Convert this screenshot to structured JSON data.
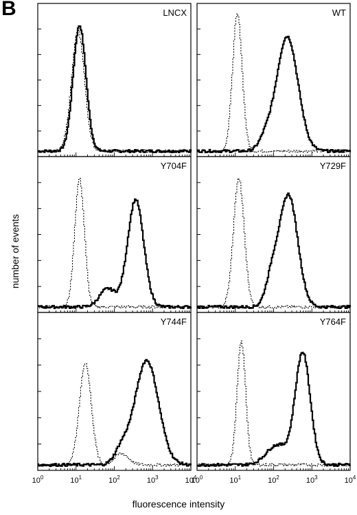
{
  "figure": {
    "panel_letter": "B",
    "y_axis_label": "number of events",
    "x_axis_label": "fluorescence intensity"
  },
  "chart_data": [
    {
      "type": "line",
      "panel": "LNCX",
      "x_scale": "log",
      "xlim": [
        1,
        10000
      ],
      "series": [
        {
          "style": "solid",
          "peaks": [
            {
              "x": 12,
              "height": 0.92,
              "width": 0.12
            }
          ],
          "noise": 0.02
        },
        {
          "style": "dotted",
          "peaks": [
            {
              "x": 11,
              "height": 0.88,
              "width": 0.12
            }
          ],
          "noise": 0.02
        }
      ]
    },
    {
      "type": "line",
      "panel": "WT",
      "x_scale": "log",
      "xlim": [
        1,
        10000
      ],
      "series": [
        {
          "style": "dotted",
          "peaks": [
            {
              "x": 11,
              "height": 1.0,
              "width": 0.09
            }
          ],
          "noise": 0.02
        },
        {
          "style": "solid",
          "peaks": [
            {
              "x": 220,
              "height": 0.84,
              "width": 0.2
            },
            {
              "x": 60,
              "height": 0.08,
              "width": 0.12
            }
          ],
          "noise": 0.02
        }
      ]
    },
    {
      "type": "line",
      "panel": "Y704F",
      "x_scale": "log",
      "xlim": [
        1,
        10000
      ],
      "series": [
        {
          "style": "dotted",
          "peaks": [
            {
              "x": 12,
              "height": 0.92,
              "width": 0.09
            }
          ],
          "noise": 0.02
        },
        {
          "style": "solid",
          "peaks": [
            {
              "x": 350,
              "height": 0.77,
              "width": 0.15
            },
            {
              "x": 65,
              "height": 0.13,
              "width": 0.15
            }
          ],
          "noise": 0.02
        }
      ]
    },
    {
      "type": "line",
      "panel": "Y729F",
      "x_scale": "log",
      "xlim": [
        1,
        10000
      ],
      "series": [
        {
          "style": "dotted",
          "peaks": [
            {
              "x": 12,
              "height": 0.92,
              "width": 0.1
            }
          ],
          "noise": 0.02
        },
        {
          "style": "solid",
          "peaks": [
            {
              "x": 240,
              "height": 0.8,
              "width": 0.17
            },
            {
              "x": 90,
              "height": 0.2,
              "width": 0.12
            }
          ],
          "noise": 0.02
        }
      ]
    },
    {
      "type": "line",
      "panel": "Y744F",
      "x_scale": "log",
      "xlim": [
        1,
        10000
      ],
      "series": [
        {
          "style": "dotted",
          "peaks": [
            {
              "x": 17,
              "height": 0.72,
              "width": 0.11
            },
            {
              "x": 150,
              "height": 0.08,
              "width": 0.13
            }
          ],
          "noise": 0.02
        },
        {
          "style": "solid",
          "peaks": [
            {
              "x": 680,
              "height": 0.74,
              "width": 0.22
            },
            {
              "x": 150,
              "height": 0.1,
              "width": 0.13
            }
          ],
          "noise": 0.02
        }
      ]
    },
    {
      "type": "line",
      "panel": "Y764F",
      "x_scale": "log",
      "xlim": [
        1,
        10000
      ],
      "series": [
        {
          "style": "dotted",
          "peaks": [
            {
              "x": 14,
              "height": 0.87,
              "width": 0.08
            }
          ],
          "noise": 0.02
        },
        {
          "style": "solid",
          "peaks": [
            {
              "x": 560,
              "height": 0.79,
              "width": 0.14
            },
            {
              "x": 120,
              "height": 0.14,
              "width": 0.2
            }
          ],
          "noise": 0.02
        }
      ]
    }
  ],
  "x_ticks": [
    {
      "base": "10",
      "exp": "0"
    },
    {
      "base": "10",
      "exp": "1"
    },
    {
      "base": "10",
      "exp": "2"
    },
    {
      "base": "10",
      "exp": "3"
    },
    {
      "base": "10",
      "exp": "4"
    }
  ]
}
